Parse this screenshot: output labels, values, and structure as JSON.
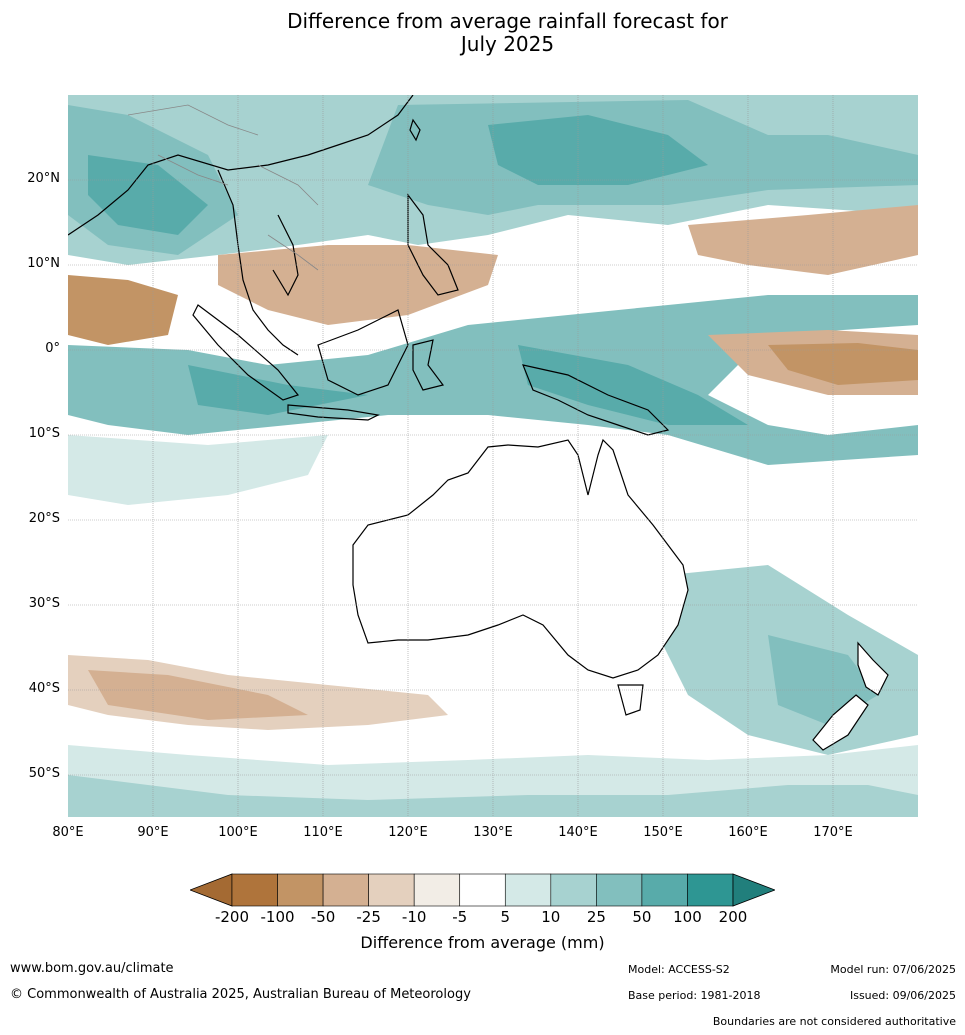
{
  "title_line1": "Difference from average rainfall forecast for",
  "title_line2": "July 2025",
  "lat_labels": [
    "20°N",
    "10°N",
    "0°",
    "10°S",
    "20°S",
    "30°S",
    "40°S",
    "50°S"
  ],
  "lon_labels": [
    "80°E",
    "90°E",
    "100°E",
    "110°E",
    "120°E",
    "130°E",
    "140°E",
    "150°E",
    "160°E",
    "170°E"
  ],
  "colorbar": {
    "ticks": [
      "-200",
      "-100",
      "-50",
      "-25",
      "-10",
      "-5",
      "5",
      "10",
      "25",
      "50",
      "100",
      "200"
    ],
    "colors": [
      "#a46a33",
      "#af743b",
      "#c29465",
      "#d4b092",
      "#e4d0be",
      "#f2ede6",
      "#ffffff",
      "#d4e9e7",
      "#a7d2d0",
      "#82bfbe",
      "#58abaa",
      "#2e9693",
      "#217f7c"
    ],
    "label": "Difference from average (mm)"
  },
  "footer": {
    "website": "www.bom.gov.au/climate",
    "copyright": "© Commonwealth of Australia 2025, Australian Bureau of Meteorology",
    "model": "Model: ACCESS-S2",
    "base_period": "Base period: 1981-2018",
    "model_run": "Model run: 07/06/2025",
    "issued": "Issued: 09/06/2025",
    "disclaimer": "Boundaries are not considered authoritative"
  }
}
